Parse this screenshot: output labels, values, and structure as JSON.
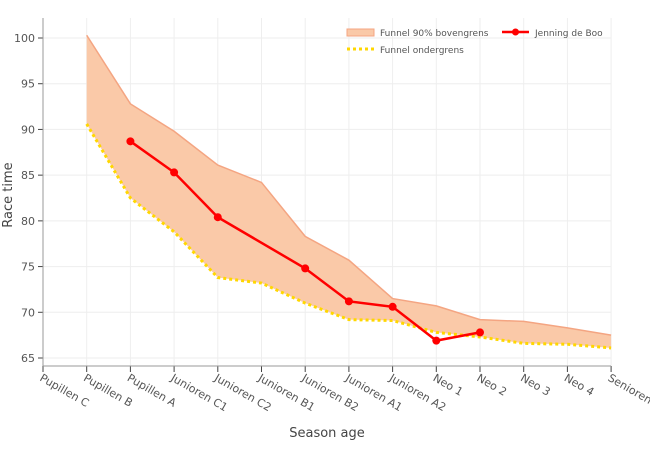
{
  "chart_data": {
    "type": "line",
    "title": "",
    "xlabel": "Season age",
    "ylabel": "Race time",
    "ylim": [
      64.3,
      102
    ],
    "yticks": [
      65,
      70,
      75,
      80,
      85,
      90,
      95,
      100
    ],
    "grid": true,
    "legend_position": "top-right",
    "categories": [
      "Pupillen C",
      "Pupillen B",
      "Pupillen A",
      "Junioren C1",
      "Junioren C2",
      "Junioren B1",
      "Junioren B2",
      "Junioren A1",
      "Junioren A2",
      "Neo 1",
      "Neo 2",
      "Neo 3",
      "Neo 4",
      "Senioren"
    ],
    "series": [
      {
        "name": "Funnel ondergrens",
        "color": "#FFD700",
        "values": [
          null,
          90.6,
          82.5,
          78.8,
          73.8,
          73.2,
          71.0,
          69.2,
          69.1,
          67.8,
          67.3,
          66.6,
          66.5,
          66.1
        ]
      },
      {
        "name": "Funnel 90% bovengrens",
        "color": "#F4A582",
        "fill": "#FAC9A8",
        "values": [
          null,
          100.3,
          92.8,
          89.8,
          86.1,
          84.2,
          78.3,
          75.7,
          71.5,
          70.7,
          69.2,
          69.0,
          68.3,
          67.5
        ]
      },
      {
        "name": "Jenning de Boo",
        "color": "#FF0000",
        "values": [
          null,
          null,
          88.7,
          85.3,
          80.4,
          null,
          74.8,
          71.2,
          70.6,
          66.9,
          67.8,
          null,
          null,
          null
        ]
      }
    ]
  }
}
